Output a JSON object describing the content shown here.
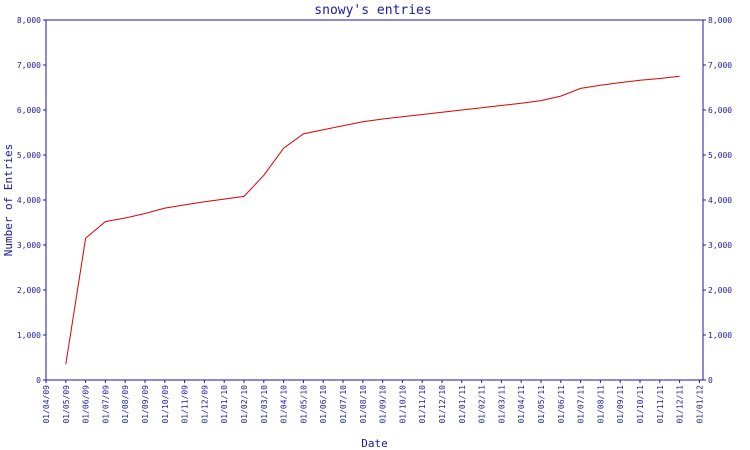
{
  "chart_data": {
    "type": "line",
    "title": "snowy's entries",
    "xlabel": "Date",
    "ylabel": "Number of Entries",
    "ylim": [
      0,
      8000
    ],
    "yticks": [
      "0",
      "1,000",
      "2,000",
      "3,000",
      "4,000",
      "5,000",
      "6,000",
      "7,000",
      "8,000"
    ],
    "x_tick_labels": [
      "01/04/09",
      "01/05/09",
      "01/06/09",
      "01/07/09",
      "01/08/09",
      "01/09/09",
      "01/10/09",
      "01/11/09",
      "01/12/09",
      "01/01/10",
      "01/02/10",
      "01/03/10",
      "01/04/10",
      "01/05/10",
      "01/06/10",
      "01/07/10",
      "01/08/10",
      "01/09/10",
      "01/10/10",
      "01/11/10",
      "01/12/10",
      "01/01/11",
      "01/02/11",
      "01/03/11",
      "01/04/11",
      "01/05/11",
      "01/06/11",
      "01/07/11",
      "01/08/11",
      "01/09/11",
      "01/10/11",
      "01/11/11",
      "01/12/11",
      "01/01/12"
    ],
    "grid": false,
    "colors": {
      "axis": "#1a1a9c",
      "line": "#e00000",
      "background": "#ffffff"
    },
    "series": [
      {
        "x": [
          "01/05/09",
          "01/06/09",
          "01/07/09",
          "01/08/09",
          "01/09/09",
          "01/10/09",
          "01/11/09",
          "01/12/09",
          "01/01/10",
          "01/02/10",
          "01/03/10",
          "01/04/10",
          "01/05/10",
          "01/06/10",
          "01/07/10",
          "01/08/10",
          "01/09/10",
          "01/10/10",
          "01/11/10",
          "01/12/10",
          "01/01/11",
          "01/02/11",
          "01/03/11",
          "01/04/11",
          "01/05/11",
          "01/06/11",
          "01/07/11",
          "01/08/11",
          "01/09/11",
          "01/10/11",
          "01/11/11",
          "01/12/11"
        ],
        "values": [
          350,
          3150,
          3520,
          3600,
          3700,
          3820,
          3890,
          3960,
          4020,
          4080,
          4550,
          5150,
          5470,
          5560,
          5650,
          5740,
          5800,
          5850,
          5900,
          5950,
          6000,
          6050,
          6100,
          6150,
          6210,
          6310,
          6480,
          6550,
          6610,
          6660,
          6700,
          6750
        ]
      }
    ]
  }
}
